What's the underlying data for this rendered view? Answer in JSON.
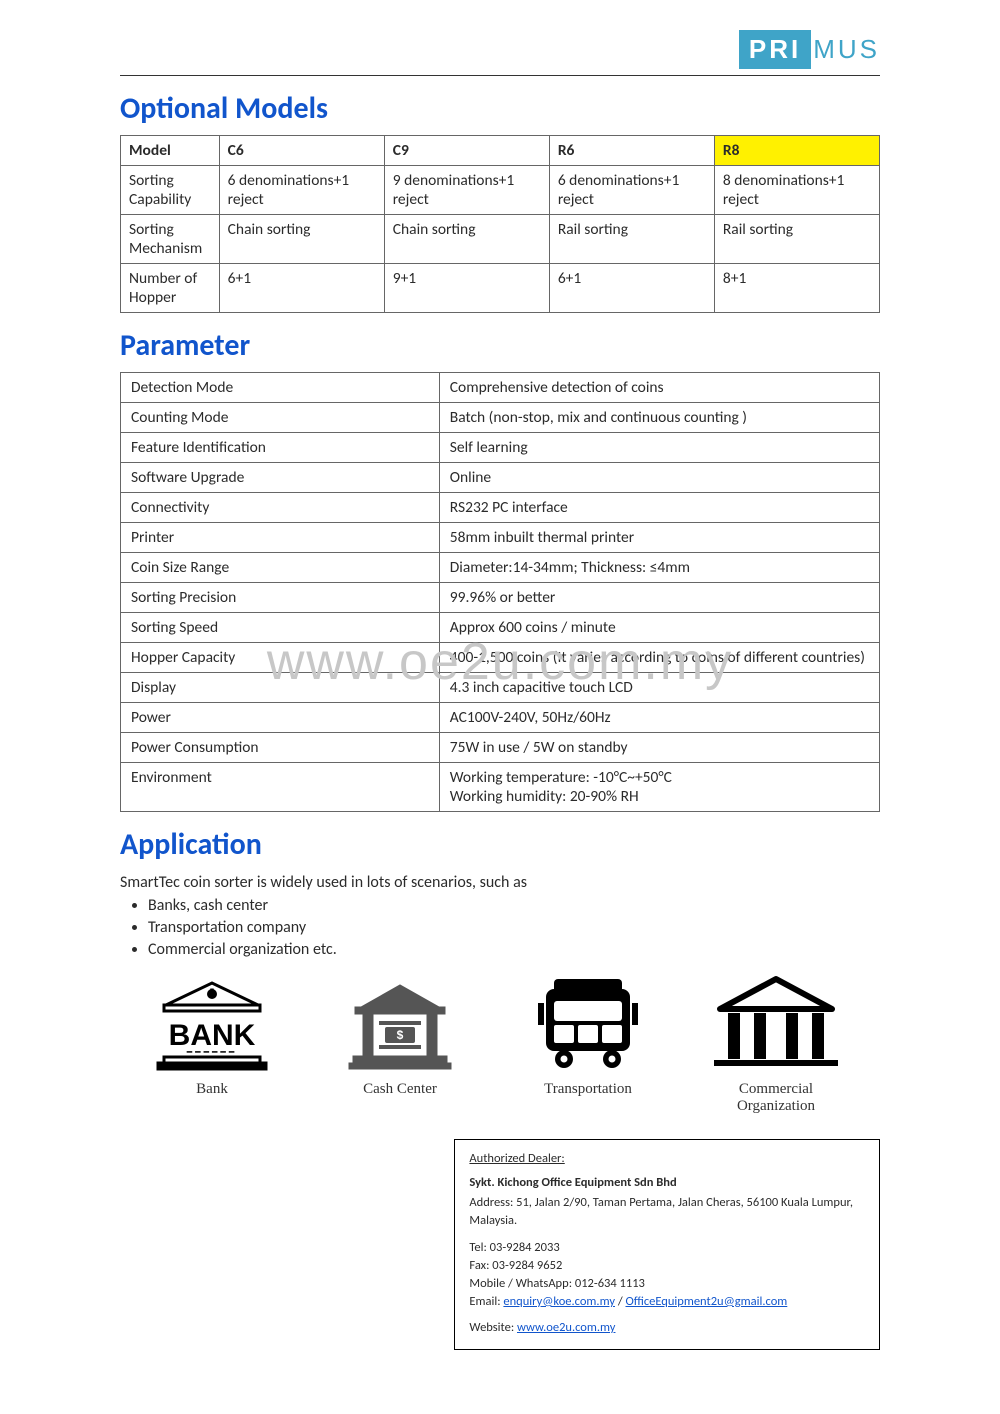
{
  "logo": {
    "boxed": "PRI",
    "rest": "MUS"
  },
  "watermark": "www.oe2u.com.my",
  "sections": {
    "models_title": "Optional Models",
    "parameter_title": "Parameter",
    "application_title": "Application"
  },
  "models_table": {
    "columns": [
      "Model",
      "C6",
      "C9",
      "R6",
      "R8"
    ],
    "highlight_col_index": 4,
    "col_widths_pct": [
      13,
      21.75,
      21.75,
      21.75,
      21.75
    ],
    "rows": [
      {
        "label": "Sorting Capability",
        "values": [
          "6 denominations+1 reject",
          "9 denominations+1 reject",
          "6 denominations+1 reject",
          "8 denominations+1 reject"
        ]
      },
      {
        "label": "Sorting Mechanism",
        "values": [
          "Chain sorting",
          "Chain sorting",
          "Rail sorting",
          "Rail sorting"
        ]
      },
      {
        "label": "Number of Hopper",
        "values": [
          "6+1",
          "9+1",
          "6+1",
          "8+1"
        ]
      }
    ]
  },
  "parameter_table": {
    "rows": [
      [
        "Detection Mode",
        "Comprehensive detection of coins"
      ],
      [
        "Counting Mode",
        "Batch (non-stop, mix and continuous counting )"
      ],
      [
        "Feature Identification",
        "Self learning"
      ],
      [
        "Software Upgrade",
        "Online"
      ],
      [
        "Connectivity",
        "RS232 PC interface"
      ],
      [
        "Printer",
        "58mm inbuilt thermal printer"
      ],
      [
        "Coin Size Range",
        "Diameter:14-34mm; Thickness: ≤4mm"
      ],
      [
        "Sorting Precision",
        "99.96% or better"
      ],
      [
        "Sorting Speed",
        "Approx 600 coins / minute"
      ],
      [
        "Hopper Capacity",
        "400-1,500 coins (It varies according to coins of different countries)"
      ],
      [
        "Display",
        "4.3 inch capacitive touch LCD"
      ],
      [
        "Power",
        "AC100V-240V, 50Hz/60Hz"
      ],
      [
        "Power Consumption",
        "75W in use / 5W on standby"
      ],
      [
        "Environment",
        "Working temperature: -10°C~+50°C\nWorking humidity: 20-90% RH"
      ]
    ]
  },
  "application": {
    "intro": "SmartTec coin sorter is widely used in lots of scenarios, such as",
    "bullets": [
      "Banks, cash center",
      "Transportation company",
      "Commercial organization etc."
    ],
    "icons": [
      {
        "name": "bank-icon",
        "label": "Bank"
      },
      {
        "name": "cash-center-icon",
        "label": "Cash Center"
      },
      {
        "name": "transportation-icon",
        "label": "Transportation"
      },
      {
        "name": "commercial-org-icon",
        "label": "Commercial Organization"
      }
    ]
  },
  "dealer": {
    "heading": "Authorized Dealer:",
    "company": "Sykt. Kichong Office Equipment Sdn Bhd",
    "address_label": "Address: ",
    "address": "51, Jalan 2/90, Taman Pertama, Jalan Cheras, 56100 Kuala Lumpur, Malaysia.",
    "tel_line": "Tel: 03-9284 2033",
    "fax_line": "Fax: 03-9284 9652",
    "mobile_line": "Mobile / WhatsApp: 012-634 1113",
    "email_label": "Email: ",
    "email1": "enquiry@koe.com.my",
    "email_sep": " / ",
    "email2": "OfficeEquipment2u@gmail.com",
    "website_label": "Website: ",
    "website": "www.oe2u.com.my"
  },
  "colors": {
    "heading": "#1155cc",
    "logo": "#3fa4c8",
    "highlight": "#fff100",
    "border": "#666666",
    "link": "#1155cc",
    "watermark": "#c7c7c7"
  }
}
